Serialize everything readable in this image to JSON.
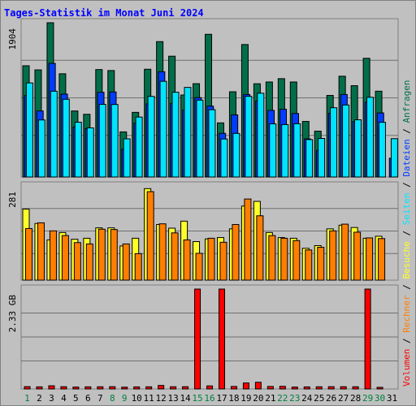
{
  "chart_data": {
    "type": "bar",
    "title": "Tages-Statistik im Monat Juni 2024",
    "x_labels": [
      "1",
      "2",
      "3",
      "4",
      "5",
      "6",
      "7",
      "8",
      "9",
      "10",
      "11",
      "12",
      "13",
      "14",
      "15",
      "16",
      "17",
      "18",
      "19",
      "20",
      "21",
      "22",
      "23",
      "24",
      "25",
      "26",
      "27",
      "28",
      "29",
      "30",
      "31"
    ],
    "weekend_days": [
      "1",
      "8",
      "9",
      "15",
      "16",
      "22",
      "23",
      "29",
      "30"
    ],
    "label_colors": {
      "weekday": "#000000",
      "weekend": "#008040"
    },
    "panels": [
      {
        "tick_label": "1904",
        "ylim": [
          0,
          1904
        ],
        "series": [
          {
            "name": "Anfragen",
            "color": "#006f49",
            "values": [
              1373,
              1322,
              1904,
              1274,
              815,
              774,
              1326,
              1314,
              557,
              798,
              1330,
              1671,
              1491,
              1012,
              1152,
              1761,
              668,
              1052,
              1635,
              1151,
              1173,
              1214,
              1173,
              686,
              566,
              1007,
              1244,
              1127,
              1465,
              1059,
              null
            ]
          },
          {
            "name": "Dateien",
            "color": "#003cff",
            "values": [
              1006,
              815,
              1403,
              1023,
              618,
              598,
              1046,
              1050,
              343,
              663,
              902,
              1299,
              908,
              824,
              980,
              875,
              539,
              767,
              1018,
              939,
              822,
              836,
              784,
              470,
              329,
              786,
              1018,
              685,
              923,
              791,
              232
            ]
          },
          {
            "name": "Seiten",
            "color": "#00e4ff",
            "values": [
              1161,
              704,
              1059,
              959,
              676,
              606,
              897,
              895,
              471,
              740,
              995,
              1181,
              1046,
              1106,
              949,
              831,
              469,
              538,
              996,
              1034,
              656,
              647,
              657,
              462,
              476,
              855,
              889,
              706,
              984,
              675,
              473
            ]
          }
        ]
      },
      {
        "tick_label": "281",
        "ylim": [
          0,
          281
        ],
        "series": [
          {
            "name": "Besuche",
            "color": "#ffff29",
            "values": [
              212,
              169,
              120,
              142,
              122,
              125,
              156,
              156,
              102,
              125,
              273,
              166,
              155,
              176,
              115,
              123,
              127,
              153,
              221,
              235,
              142,
              127,
              125,
              95,
              103,
              153,
              164,
              157,
              125,
              131,
              null
            ]
          },
          {
            "name": "Rechner",
            "color": "#ff7e00",
            "values": [
              154,
              171,
              147,
              133,
              112,
              108,
              152,
              151,
              108,
              79,
              264,
              168,
              141,
              120,
              80,
              125,
              113,
              166,
              242,
              192,
              133,
              125,
              118,
              90,
              98,
              147,
              167,
              143,
              126,
              124,
              null
            ]
          }
        ]
      },
      {
        "tick_label": "2.33 GB",
        "ylim": [
          0,
          2.33
        ],
        "series": [
          {
            "name": "Volumen",
            "color": "#ff0000",
            "values": [
              0.054,
              0.049,
              0.074,
              0.052,
              0.044,
              0.049,
              0.051,
              0.053,
              0.042,
              0.048,
              0.05,
              0.082,
              0.051,
              0.052,
              2.33,
              0.071,
              2.33,
              0.058,
              0.14,
              0.156,
              0.058,
              0.061,
              0.044,
              0.048,
              0.051,
              0.053,
              0.052,
              0.051,
              2.33,
              0.036,
              null
            ]
          }
        ]
      }
    ],
    "side_legend": [
      {
        "text": "Volumen",
        "color": "#ff0000"
      },
      {
        "text": " / ",
        "color": "#000000"
      },
      {
        "text": "Rechner",
        "color": "#ff7e00"
      },
      {
        "text": " / ",
        "color": "#000000"
      },
      {
        "text": "Besuche",
        "color": "#ffff29"
      },
      {
        "text": " / ",
        "color": "#000000"
      },
      {
        "text": "Seiten",
        "color": "#00e4ff"
      },
      {
        "text": " / ",
        "color": "#000000"
      },
      {
        "text": "Dateien",
        "color": "#003cff"
      },
      {
        "text": " / ",
        "color": "#000000"
      },
      {
        "text": "Anfragen",
        "color": "#006f49"
      }
    ]
  }
}
